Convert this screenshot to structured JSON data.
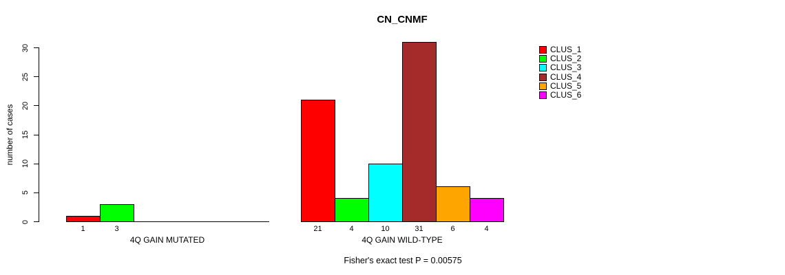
{
  "chart_data": {
    "type": "bar",
    "title": "CN_CNMF",
    "ylabel": "number of cases",
    "ylim": [
      0,
      30
    ],
    "yticks": [
      0,
      5,
      10,
      15,
      20,
      25,
      30
    ],
    "grid": false,
    "legend": {
      "position": "top-right",
      "items": [
        {
          "label": "CLUS_1",
          "color": "#FF0000"
        },
        {
          "label": "CLUS_2",
          "color": "#00FF00"
        },
        {
          "label": "CLUS_3",
          "color": "#00FFFF"
        },
        {
          "label": "CLUS_4",
          "color": "#A52A2A"
        },
        {
          "label": "CLUS_5",
          "color": "#FFA500"
        },
        {
          "label": "CLUS_6",
          "color": "#FF00FF"
        }
      ]
    },
    "groups": [
      {
        "label": "4Q GAIN MUTATED",
        "values": [
          1,
          3,
          0,
          0,
          0,
          0
        ]
      },
      {
        "label": "4Q GAIN WILD-TYPE",
        "values": [
          21,
          4,
          10,
          31,
          6,
          4
        ]
      }
    ],
    "annotation": "Fisher's exact test P = 0.00575"
  }
}
